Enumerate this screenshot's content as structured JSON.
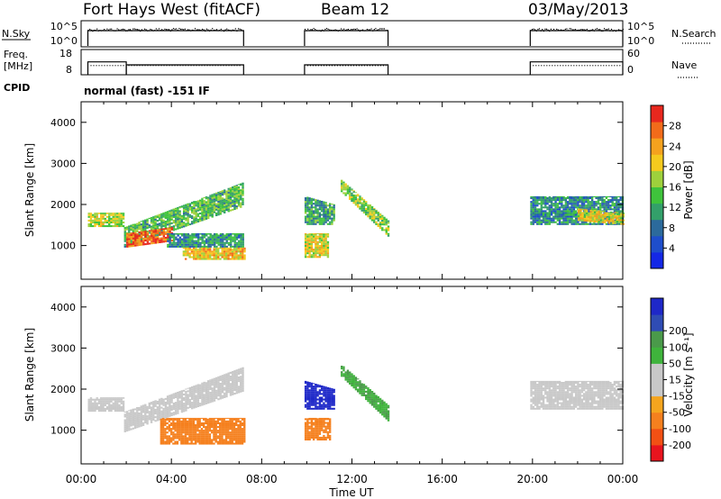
{
  "header": {
    "station": "Fort Hays West (fitACF)",
    "beam": "Beam 12",
    "date": "03/May/2013"
  },
  "nsky_panel": {
    "label": "N.Sky",
    "ticks_left": [
      "10^5",
      "10^0"
    ],
    "ticks_right": [
      "10^5",
      "10^0"
    ],
    "right_label": "N.Search",
    "blocks_hours": [
      [
        0.3,
        7.2
      ],
      [
        9.9,
        13.6
      ],
      [
        19.9,
        24.0
      ]
    ]
  },
  "freq_panel": {
    "label_line1": "Freq.",
    "label_line2": "[MHz]",
    "ticks_left": [
      "18",
      "8"
    ],
    "ticks_right": [
      "60",
      "0"
    ],
    "right_label": "Nave",
    "freq_steps": [
      {
        "t0": 0.3,
        "t1": 2.0,
        "mhz": 14.5
      },
      {
        "t0": 2.0,
        "t1": 7.2,
        "mhz": 13.0
      },
      {
        "t0": 9.9,
        "t1": 13.6,
        "mhz": 13.0
      },
      {
        "t0": 19.9,
        "t1": 24.0,
        "mhz": 14.5
      }
    ],
    "nave_level": 22
  },
  "cpid": {
    "label": "CPID",
    "text": "normal (fast) -151 IF"
  },
  "colors": {
    "power": [
      "#1428e6",
      "#1e4ecc",
      "#2c6a9c",
      "#33a06a",
      "#3fc33c",
      "#9ed13c",
      "#f5ca1e",
      "#f5a21e",
      "#f26b1a",
      "#e8281e"
    ],
    "velocity": [
      "#e8141e",
      "#f25014",
      "#f5801e",
      "#f5a51e",
      "#c8c8c8",
      "#c8c8c8",
      "#3fb43c",
      "#4a9a4a",
      "#2f4cb4",
      "#1e28c8"
    ]
  },
  "chart_data": [
    {
      "type": "heatmap",
      "name": "power",
      "xlabel": "",
      "ylabel": "Slant Range [km]",
      "xlim": [
        0,
        24
      ],
      "ylim": [
        180,
        4500
      ],
      "yticks": [
        1000,
        2000,
        3000,
        4000
      ],
      "colorbar": {
        "label": "Power [dB]",
        "range": [
          0,
          32
        ],
        "ticks": [
          "4",
          "8",
          "12",
          "16",
          "20",
          "24",
          "28"
        ]
      },
      "echo_bands": [
        {
          "t0": 0.3,
          "t1": 1.9,
          "r_lo0": 1450,
          "r_hi0": 1800,
          "r_lo1": 1450,
          "r_hi1": 1800,
          "pow": 18
        },
        {
          "t0": 1.9,
          "t1": 7.2,
          "r_lo0": 950,
          "r_hi0": 1450,
          "r_lo1": 1950,
          "r_hi1": 2550,
          "pow": 14
        },
        {
          "t0": 2.0,
          "t1": 4.0,
          "r_lo0": 950,
          "r_hi0": 1300,
          "r_lo1": 1100,
          "r_hi1": 1450,
          "pow": 28
        },
        {
          "t0": 3.8,
          "t1": 7.2,
          "r_lo0": 950,
          "r_hi0": 1300,
          "r_lo1": 950,
          "r_hi1": 1300,
          "pow": 10
        },
        {
          "t0": 4.5,
          "t1": 7.2,
          "r_lo0": 650,
          "r_hi0": 950,
          "r_lo1": 650,
          "r_hi1": 950,
          "pow": 22
        },
        {
          "t0": 9.9,
          "t1": 10.9,
          "r_lo0": 700,
          "r_hi0": 1300,
          "r_lo1": 700,
          "r_hi1": 1300,
          "pow": 20
        },
        {
          "t0": 9.9,
          "t1": 11.2,
          "r_lo0": 1500,
          "r_hi0": 2200,
          "r_lo1": 1500,
          "r_hi1": 2000,
          "pow": 12
        },
        {
          "t0": 11.5,
          "t1": 13.6,
          "r_lo0": 2300,
          "r_hi0": 2600,
          "r_lo1": 1200,
          "r_hi1": 1600,
          "pow": 16
        },
        {
          "t0": 19.9,
          "t1": 24.0,
          "r_lo0": 1500,
          "r_hi0": 2200,
          "r_lo1": 1500,
          "r_hi1": 2200,
          "pow": 10
        },
        {
          "t0": 22.0,
          "t1": 24.0,
          "r_lo0": 1600,
          "r_hi0": 1900,
          "r_lo1": 1500,
          "r_hi1": 1800,
          "pow": 20
        }
      ]
    },
    {
      "type": "heatmap",
      "name": "velocity",
      "xlabel": "Time UT",
      "ylabel": "Slant Range [km]",
      "xlim": [
        0,
        24
      ],
      "ylim": [
        180,
        4500
      ],
      "yticks": [
        1000,
        2000,
        3000,
        4000
      ],
      "xticks": [
        "00:00",
        "04:00",
        "08:00",
        "12:00",
        "16:00",
        "20:00",
        "00:00"
      ],
      "colorbar": {
        "label": "Velocity [m s⁻¹]",
        "ticks": [
          "-200",
          "-100",
          "-50",
          "-15",
          "15",
          "50",
          "100",
          "200"
        ]
      },
      "echo_bands": [
        {
          "t0": 0.3,
          "t1": 1.9,
          "r_lo0": 1450,
          "r_hi0": 1800,
          "r_lo1": 1450,
          "r_hi1": 1800,
          "vel": 0
        },
        {
          "t0": 1.9,
          "t1": 7.2,
          "r_lo0": 950,
          "r_hi0": 1450,
          "r_lo1": 1950,
          "r_hi1": 2550,
          "vel": 0
        },
        {
          "t0": 3.5,
          "t1": 7.2,
          "r_lo0": 650,
          "r_hi0": 1300,
          "r_lo1": 650,
          "r_hi1": 1300,
          "vel": -70
        },
        {
          "t0": 9.9,
          "t1": 11.0,
          "r_lo0": 750,
          "r_hi0": 1300,
          "r_lo1": 750,
          "r_hi1": 1300,
          "vel": -70
        },
        {
          "t0": 9.9,
          "t1": 11.2,
          "r_lo0": 1500,
          "r_hi0": 2200,
          "r_lo1": 1500,
          "r_hi1": 2000,
          "vel": 300
        },
        {
          "t0": 11.5,
          "t1": 13.6,
          "r_lo0": 2300,
          "r_hi0": 2600,
          "r_lo1": 1200,
          "r_hi1": 1600,
          "vel": 50
        },
        {
          "t0": 19.9,
          "t1": 24.0,
          "r_lo0": 1500,
          "r_hi0": 2200,
          "r_lo1": 1500,
          "r_hi1": 2200,
          "vel": 0
        }
      ]
    }
  ]
}
